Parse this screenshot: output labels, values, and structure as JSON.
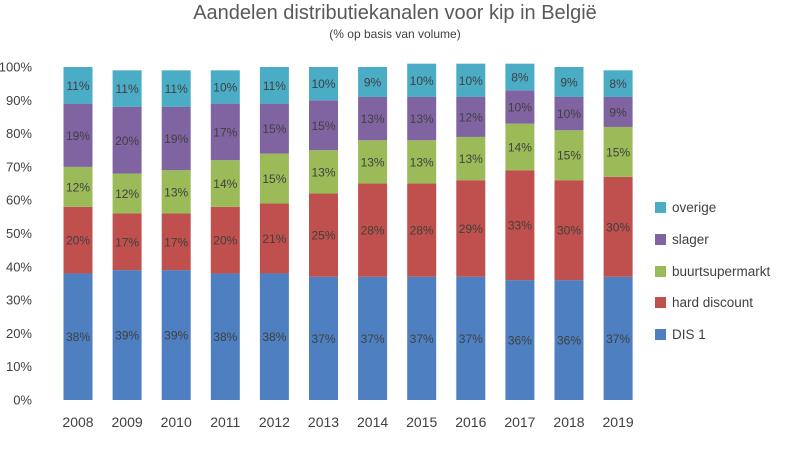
{
  "chart_data": {
    "type": "bar",
    "stacked": true,
    "title": "Aandelen distributiekanalen voor kip in België",
    "subtitle": "(% op basis van volume)",
    "xlabel": "",
    "ylabel": "",
    "ylim": [
      0,
      100
    ],
    "y_tick_labels": [
      "0%",
      "10%",
      "20%",
      "30%",
      "40%",
      "50%",
      "60%",
      "70%",
      "80%",
      "90%",
      "100%"
    ],
    "grid": false,
    "legend_position": "right",
    "categories": [
      "2008",
      "2009",
      "2010",
      "2011",
      "2012",
      "2013",
      "2014",
      "2015",
      "2016",
      "2017",
      "2018",
      "2019"
    ],
    "series": [
      {
        "name": "DIS 1",
        "color": "#4e7fc1",
        "values": [
          38,
          39,
          39,
          38,
          38,
          37,
          37,
          37,
          37,
          36,
          36,
          37
        ],
        "labels": [
          "38%",
          "39%",
          "39%",
          "38%",
          "38%",
          "37%",
          "37%",
          "37%",
          "37%",
          "36%",
          "36%",
          "37%"
        ]
      },
      {
        "name": "hard discount",
        "color": "#c0504d",
        "values": [
          20,
          17,
          17,
          20,
          21,
          25,
          28,
          28,
          29,
          33,
          30,
          30
        ],
        "labels": [
          "20%",
          "17%",
          "17%",
          "20%",
          "21%",
          "25%",
          "28%",
          "28%",
          "29%",
          "33%",
          "30%",
          "30%"
        ]
      },
      {
        "name": "buurtsupermarkt",
        "color": "#9bbb59",
        "values": [
          12,
          12,
          13,
          14,
          15,
          13,
          13,
          13,
          13,
          14,
          15,
          15
        ],
        "labels": [
          "12%",
          "12%",
          "13%",
          "14%",
          "15%",
          "13%",
          "13%",
          "13%",
          "13%",
          "14%",
          "15%",
          "15%"
        ]
      },
      {
        "name": "slager",
        "color": "#8064a2",
        "values": [
          19,
          20,
          19,
          17,
          15,
          15,
          13,
          13,
          12,
          10,
          10,
          9
        ],
        "labels": [
          "19%",
          "20%",
          "19%",
          "17%",
          "15%",
          "15%",
          "13%",
          "13%",
          "12%",
          "10%",
          "10%",
          "9%"
        ]
      },
      {
        "name": "overige",
        "color": "#4bacc6",
        "values": [
          11,
          11,
          11,
          10,
          11,
          10,
          9,
          10,
          10,
          8,
          9,
          8
        ],
        "labels": [
          "11%",
          "11%",
          "11%",
          "10%",
          "11%",
          "10%",
          "9%",
          "10%",
          "10%",
          "8%",
          "9%",
          "8%"
        ]
      }
    ],
    "legend_order": [
      "overige",
      "slager",
      "buurtsupermarkt",
      "hard discount",
      "DIS 1"
    ]
  }
}
